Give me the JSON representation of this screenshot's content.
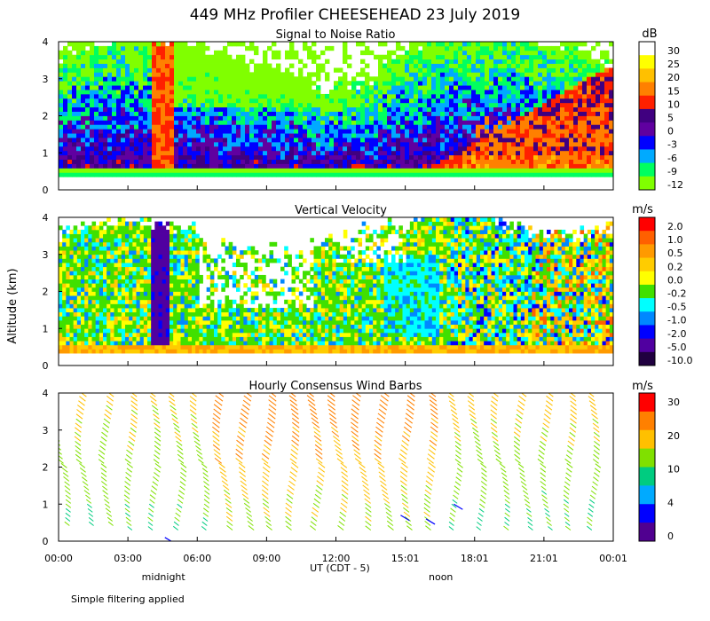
{
  "title": "449 MHz Profiler CHEESEHEAD 23 July 2019",
  "ylabel": "Altitude (km)",
  "xlabel": "UT  (CDT - 5)",
  "x_ticks": [
    "00:00",
    "03:00",
    "06:00",
    "09:00",
    "12:00",
    "15:01",
    "18:01",
    "21:01",
    "00:01"
  ],
  "local_markers": [
    {
      "label": "midnight",
      "hour": 5
    },
    {
      "label": "noon",
      "hour": 17
    }
  ],
  "footnote": "Simple filtering applied",
  "chart_data": [
    {
      "type": "heatmap",
      "title": "Signal to Noise Ratio",
      "units": "dB",
      "x_range_hours": [
        0,
        24
      ],
      "ylim": [
        0,
        4
      ],
      "y_ticks": [
        "0",
        "1",
        "2",
        "3",
        "4"
      ],
      "colorbar": {
        "labels": [
          "30",
          "25",
          "20",
          "15",
          "10",
          "5",
          "0",
          "-3",
          "-6",
          "-9",
          "-12"
        ],
        "colors": [
          "#ffffff",
          "#ffff00",
          "#ffc000",
          "#ff8000",
          "#ff2000",
          "#400080",
          "#6000a0",
          "#0000ff",
          "#00aaff",
          "#00ff60",
          "#80ff00"
        ]
      }
    },
    {
      "type": "heatmap",
      "title": "Vertical Velocity",
      "units": "m/s",
      "x_range_hours": [
        0,
        24
      ],
      "ylim": [
        0,
        4
      ],
      "y_ticks": [
        "0",
        "1",
        "2",
        "3",
        "4"
      ],
      "colorbar": {
        "labels": [
          "2.0",
          "1.0",
          "0.5",
          "0.2",
          "0.0",
          "-0.2",
          "-0.5",
          "-1.0",
          "-2.0",
          "-5.0",
          "-10.0"
        ],
        "colors": [
          "#ff0000",
          "#ff6000",
          "#ff9a00",
          "#ffcc00",
          "#ffff00",
          "#40e000",
          "#00ffff",
          "#0088ff",
          "#0000ff",
          "#5000a0",
          "#200040"
        ]
      }
    },
    {
      "type": "wind_barbs",
      "title": "Hourly Consensus Wind Barbs",
      "units": "m/s",
      "x_range_hours": [
        0,
        24
      ],
      "ylim": [
        0,
        4
      ],
      "y_ticks": [
        "0",
        "1",
        "2",
        "3",
        "4"
      ],
      "colorbar": {
        "labels": [
          "30",
          "20",
          "10",
          "4",
          "0"
        ],
        "colors": [
          "#ff0000",
          "#ff8000",
          "#ffc000",
          "#80e000",
          "#00cc80",
          "#00aaff",
          "#0000ff",
          "#500090"
        ]
      }
    }
  ]
}
